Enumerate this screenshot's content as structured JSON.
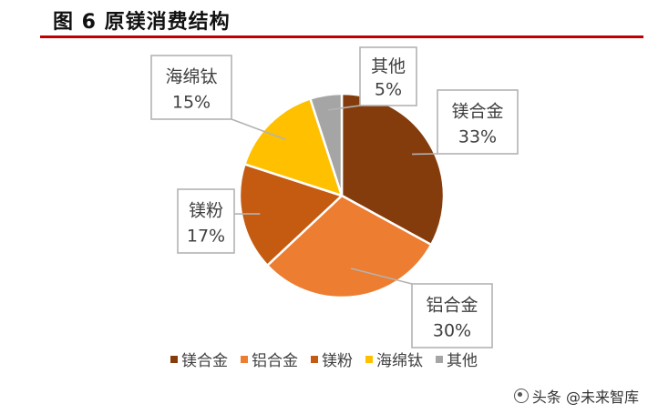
{
  "title": "图 6 原镁消费结构",
  "chart_data": {
    "type": "pie",
    "title": "图 6 原镁消费结构",
    "slices": [
      {
        "label": "镁合金",
        "value": 33,
        "display": "33%",
        "color": "#843c0c"
      },
      {
        "label": "铝合金",
        "value": 30,
        "display": "30%",
        "color": "#ed7d31"
      },
      {
        "label": "镁粉",
        "value": 17,
        "display": "17%",
        "color": "#c55a11"
      },
      {
        "label": "海绵钛",
        "value": 15,
        "display": "15%",
        "color": "#ffc000"
      },
      {
        "label": "其他",
        "value": 5,
        "display": "5%",
        "color": "#a5a5a5"
      }
    ],
    "legend": {
      "position": "bottom",
      "items": [
        "镁合金",
        "铝合金",
        "镁粉",
        "海绵钛",
        "其他"
      ]
    }
  },
  "watermark": "头条 @未来智库"
}
